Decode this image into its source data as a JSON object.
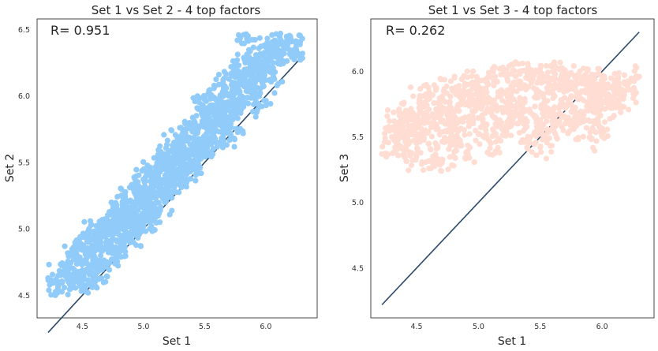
{
  "chart_data": [
    {
      "type": "scatter",
      "title": "Set 1 vs Set 2 - 4 top factors",
      "xlabel": "Set 1",
      "ylabel": "Set 2",
      "annotation": "R= 0.951",
      "r_value": 0.951,
      "xlim": [
        4.13,
        6.42
      ],
      "ylim": [
        4.33,
        6.58
      ],
      "xticks": [
        "4.5",
        "5.0",
        "5.5",
        "6.0"
      ],
      "yticks": [
        "4.5",
        "5.0",
        "5.5",
        "6.0",
        "6.5"
      ],
      "color": "#90cbfa",
      "grid": false,
      "x_range": [
        4.22,
        6.3
      ],
      "y_range": [
        4.5,
        6.47
      ],
      "fit_line": {
        "x": [
          4.22,
          6.3
        ],
        "y": [
          4.22,
          6.3
        ],
        "color": "#2c4a6a"
      },
      "series": [
        {
          "points": [
            [
              4.22,
              4.63
            ],
            [
              4.28,
              4.5
            ],
            [
              4.32,
              4.6
            ],
            [
              4.35,
              4.67
            ],
            [
              4.38,
              4.72
            ],
            [
              4.4,
              4.58
            ],
            [
              4.42,
              4.81
            ],
            [
              4.45,
              4.66
            ],
            [
              4.47,
              4.86
            ],
            [
              4.5,
              4.75
            ],
            [
              4.52,
              4.62
            ],
            [
              4.55,
              4.9
            ],
            [
              4.57,
              4.8
            ],
            [
              4.6,
              4.97
            ],
            [
              4.62,
              4.73
            ],
            [
              4.65,
              4.93
            ],
            [
              4.67,
              5.02
            ],
            [
              4.7,
              4.85
            ],
            [
              4.72,
              5.05
            ],
            [
              4.74,
              4.96
            ],
            [
              4.77,
              5.08
            ],
            [
              4.8,
              4.9
            ],
            [
              4.82,
              5.1
            ],
            [
              4.84,
              5.0
            ],
            [
              4.87,
              5.14
            ],
            [
              4.9,
              4.95
            ],
            [
              4.92,
              5.2
            ],
            [
              4.95,
              5.06
            ],
            [
              4.97,
              5.27
            ],
            [
              5.0,
              5.12
            ],
            [
              5.02,
              5.3
            ],
            [
              5.05,
              5.19
            ],
            [
              5.07,
              5.35
            ],
            [
              5.1,
              5.23
            ],
            [
              5.12,
              5.4
            ],
            [
              5.15,
              5.3
            ],
            [
              5.17,
              5.47
            ],
            [
              5.2,
              5.36
            ],
            [
              5.22,
              5.53
            ],
            [
              5.25,
              5.41
            ],
            [
              5.28,
              5.58
            ],
            [
              5.3,
              5.47
            ],
            [
              5.33,
              5.62
            ],
            [
              5.35,
              5.53
            ],
            [
              5.38,
              5.68
            ],
            [
              5.4,
              5.58
            ],
            [
              5.43,
              5.74
            ],
            [
              5.45,
              5.63
            ],
            [
              5.48,
              5.8
            ],
            [
              5.5,
              5.68
            ],
            [
              5.53,
              5.85
            ],
            [
              5.55,
              5.74
            ],
            [
              5.58,
              5.9
            ],
            [
              5.6,
              5.8
            ],
            [
              5.63,
              5.96
            ],
            [
              5.65,
              5.86
            ],
            [
              5.68,
              6.02
            ],
            [
              5.7,
              5.9
            ],
            [
              5.73,
              6.06
            ],
            [
              5.75,
              5.96
            ],
            [
              5.78,
              6.1
            ],
            [
              5.8,
              6.0
            ],
            [
              5.83,
              6.16
            ],
            [
              5.86,
              6.05
            ],
            [
              5.88,
              6.2
            ],
            [
              5.9,
              6.1
            ],
            [
              5.93,
              6.25
            ],
            [
              5.95,
              6.15
            ],
            [
              5.98,
              6.3
            ],
            [
              6.0,
              6.2
            ],
            [
              6.03,
              6.35
            ],
            [
              6.06,
              6.25
            ],
            [
              6.1,
              6.4
            ],
            [
              6.15,
              6.32
            ],
            [
              6.2,
              6.45
            ],
            [
              6.25,
              6.38
            ],
            [
              6.3,
              6.32
            ],
            [
              5.85,
              6.45
            ],
            [
              6.12,
              6.47
            ],
            [
              5.95,
              5.92
            ],
            [
              5.7,
              5.72
            ],
            [
              5.6,
              5.65
            ],
            [
              5.5,
              5.55
            ],
            [
              5.4,
              5.45
            ],
            [
              5.3,
              5.35
            ],
            [
              5.2,
              5.25
            ],
            [
              5.1,
              5.15
            ],
            [
              5.0,
              5.02
            ],
            [
              4.9,
              4.92
            ],
            [
              4.8,
              4.82
            ],
            [
              4.7,
              4.75
            ],
            [
              4.6,
              4.65
            ],
            [
              4.5,
              4.55
            ],
            [
              4.6,
              4.98
            ],
            [
              4.75,
              5.15
            ],
            [
              4.85,
              5.25
            ],
            [
              4.95,
              5.35
            ],
            [
              5.05,
              5.45
            ],
            [
              5.15,
              5.55
            ],
            [
              5.25,
              5.65
            ],
            [
              5.35,
              5.75
            ],
            [
              5.45,
              5.9
            ],
            [
              5.55,
              6.0
            ],
            [
              5.65,
              6.1
            ],
            [
              5.75,
              6.2
            ],
            [
              5.85,
              6.3
            ],
            [
              4.65,
              4.7
            ],
            [
              4.78,
              4.84
            ],
            [
              4.9,
              5.05
            ],
            [
              5.05,
              5.12
            ],
            [
              5.18,
              5.3
            ],
            [
              5.3,
              5.42
            ],
            [
              5.42,
              5.52
            ],
            [
              5.55,
              5.66
            ],
            [
              5.68,
              5.78
            ],
            [
              5.8,
              5.9
            ],
            [
              5.92,
              6.02
            ],
            [
              6.05,
              6.12
            ]
          ]
        }
      ]
    },
    {
      "type": "scatter",
      "title": "Set 1 vs Set 3 - 4 top factors",
      "xlabel": "Set 1",
      "ylabel": "Set 3",
      "annotation": "R= 0.262",
      "r_value": 0.262,
      "xlim": [
        4.13,
        6.42
      ],
      "ylim": [
        4.12,
        6.4
      ],
      "xticks": [
        "4.5",
        "5.0",
        "5.5",
        "6.0"
      ],
      "yticks": [
        "4.5",
        "5.0",
        "5.5",
        "6.0"
      ],
      "color": "#ffddd2",
      "grid": false,
      "x_range": [
        4.22,
        6.3
      ],
      "y_range": [
        5.24,
        6.07
      ],
      "fit_line": {
        "x": [
          4.22,
          6.3
        ],
        "y": [
          4.22,
          6.3
        ],
        "color": "#2c4a6a"
      },
      "series": [
        {
          "points": [
            [
              4.22,
              5.37
            ],
            [
              4.3,
              5.5
            ],
            [
              4.32,
              5.62
            ],
            [
              4.35,
              5.45
            ],
            [
              4.38,
              5.58
            ],
            [
              4.4,
              5.4
            ],
            [
              4.42,
              5.7
            ],
            [
              4.45,
              5.52
            ],
            [
              4.48,
              5.63
            ],
            [
              4.5,
              5.35
            ],
            [
              4.52,
              5.76
            ],
            [
              4.55,
              5.55
            ],
            [
              4.58,
              5.66
            ],
            [
              4.6,
              5.45
            ],
            [
              4.63,
              5.82
            ],
            [
              4.65,
              5.58
            ],
            [
              4.68,
              5.7
            ],
            [
              4.7,
              5.3
            ],
            [
              4.72,
              5.85
            ],
            [
              4.75,
              5.6
            ],
            [
              4.78,
              5.72
            ],
            [
              4.8,
              5.5
            ],
            [
              4.82,
              5.88
            ],
            [
              4.85,
              5.62
            ],
            [
              4.88,
              5.76
            ],
            [
              4.9,
              5.38
            ],
            [
              4.92,
              5.9
            ],
            [
              4.95,
              5.65
            ],
            [
              4.98,
              5.78
            ],
            [
              5.0,
              5.52
            ],
            [
              5.02,
              5.93
            ],
            [
              5.05,
              5.68
            ],
            [
              5.08,
              5.8
            ],
            [
              5.1,
              5.45
            ],
            [
              5.12,
              5.95
            ],
            [
              5.15,
              5.7
            ],
            [
              5.18,
              5.82
            ],
            [
              5.2,
              5.55
            ],
            [
              5.22,
              5.97
            ],
            [
              5.25,
              5.72
            ],
            [
              5.28,
              5.85
            ],
            [
              5.3,
              6.07
            ],
            [
              5.32,
              5.6
            ],
            [
              5.35,
              5.75
            ],
            [
              5.38,
              5.88
            ],
            [
              5.4,
              5.5
            ],
            [
              5.42,
              5.98
            ],
            [
              5.45,
              5.66
            ],
            [
              5.48,
              5.8
            ],
            [
              5.5,
              5.42
            ],
            [
              5.52,
              5.95
            ],
            [
              5.55,
              5.7
            ],
            [
              5.58,
              5.84
            ],
            [
              5.6,
              5.55
            ],
            [
              5.62,
              5.98
            ],
            [
              5.65,
              5.72
            ],
            [
              5.68,
              5.86
            ],
            [
              5.7,
              5.6
            ],
            [
              5.72,
              5.95
            ],
            [
              5.75,
              5.75
            ],
            [
              5.78,
              5.88
            ],
            [
              5.8,
              5.65
            ],
            [
              5.82,
              6.0
            ],
            [
              5.85,
              5.78
            ],
            [
              5.88,
              5.9
            ],
            [
              5.9,
              5.62
            ],
            [
              5.93,
              5.96
            ],
            [
              5.95,
              5.8
            ],
            [
              5.98,
              5.7
            ],
            [
              6.0,
              5.9
            ],
            [
              6.03,
              5.76
            ],
            [
              6.05,
              5.88
            ],
            [
              6.08,
              5.72
            ],
            [
              6.1,
              5.84
            ],
            [
              6.13,
              5.78
            ],
            [
              6.18,
              5.92
            ],
            [
              6.22,
              5.86
            ],
            [
              6.3,
              5.96
            ],
            [
              4.6,
              5.26
            ],
            [
              4.7,
              5.24
            ],
            [
              5.9,
              5.5
            ],
            [
              6.0,
              5.55
            ],
            [
              5.0,
              5.75
            ],
            [
              5.3,
              5.68
            ],
            [
              5.55,
              5.62
            ],
            [
              4.85,
              5.45
            ],
            [
              5.15,
              5.58
            ],
            [
              5.45,
              5.52
            ],
            [
              5.75,
              5.58
            ],
            [
              4.5,
              5.6
            ],
            [
              4.4,
              5.55
            ],
            [
              5.6,
              6.05
            ]
          ]
        }
      ]
    }
  ]
}
